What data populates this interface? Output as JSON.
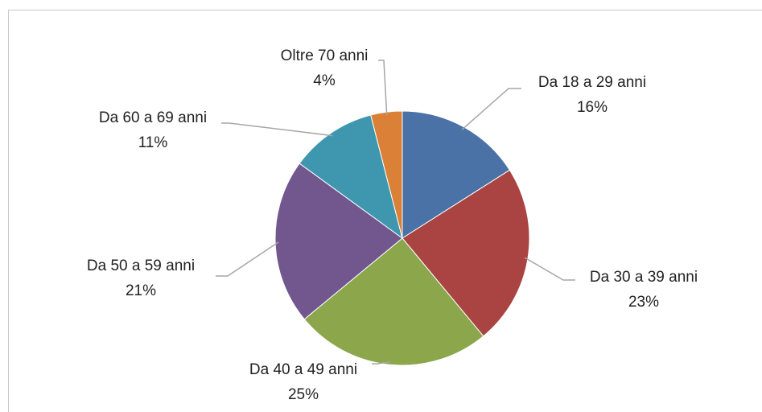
{
  "chart_data": {
    "type": "pie",
    "categories": [
      "Da 18 a 29 anni",
      "Da 30 a 39 anni",
      "Da 40 a 49 anni",
      "Da 50 a 59 anni",
      "Da 60 a 69 anni",
      "Oltre 70 anni"
    ],
    "values": [
      16,
      23,
      25,
      21,
      11,
      4
    ],
    "value_labels": [
      "16%",
      "23%",
      "25%",
      "21%",
      "11%",
      "4%"
    ],
    "colors": [
      "#4a72a6",
      "#a94442",
      "#8ba64b",
      "#71578e",
      "#3e97ae",
      "#da8137"
    ]
  }
}
